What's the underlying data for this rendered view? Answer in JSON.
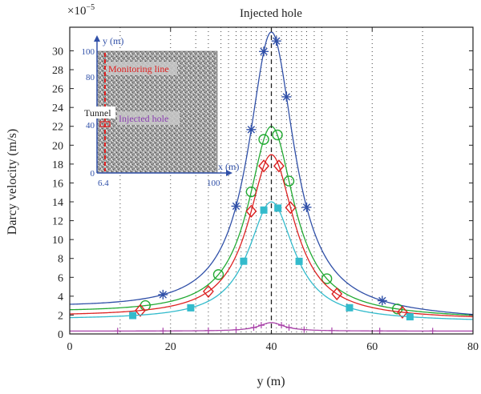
{
  "chart_data": {
    "type": "line",
    "title": "Injected hole",
    "xlabel": "y (m)",
    "ylabel": "Darcy velocity (m/s)",
    "y_multiplier": "×10",
    "y_multiplier_exp": "−5",
    "xlim": [
      0,
      80
    ],
    "ylim": [
      0,
      32.5
    ],
    "x_ticks": [
      0,
      20,
      40,
      60,
      80
    ],
    "y_ticks": [
      0,
      2,
      4,
      6,
      8,
      10,
      12,
      14,
      16,
      18,
      20,
      22,
      24,
      26,
      28,
      30
    ],
    "injected_hole_y": 40,
    "series": [
      {
        "marker": "star",
        "color": "#3050a8",
        "peak": 32,
        "base_left": 2.6,
        "base_right": 1.5,
        "width": 5.5,
        "markers_x": [
          18.5,
          33,
          36,
          38.5,
          41,
          43,
          47,
          62
        ]
      },
      {
        "marker": "circle",
        "color": "#22aa33",
        "peak": 22,
        "base_left": 2.2,
        "base_right": 1.6,
        "width": 5.5,
        "markers_x": [
          15,
          29.5,
          36,
          38.5,
          41.2,
          43.5,
          51,
          65
        ]
      },
      {
        "marker": "diamond",
        "color": "#dd2222",
        "peak": 19,
        "base_left": 1.8,
        "base_right": 1.5,
        "width": 5.5,
        "markers_x": [
          14,
          27.5,
          36,
          38.5,
          41.5,
          43.8,
          53,
          66
        ]
      },
      {
        "marker": "square",
        "color": "#33bbcc",
        "peak": 14,
        "base_left": 1.5,
        "base_right": 1.3,
        "width": 5.5,
        "markers_x": [
          12.5,
          24,
          34.5,
          38.5,
          41.3,
          45.5,
          55.5,
          67.5
        ]
      },
      {
        "marker": "plus",
        "color": "#aa44aa",
        "peak": 1.2,
        "base_left": 0.3,
        "base_right": 0.3,
        "width": 3,
        "markers_x": [
          9.5,
          18.5,
          27.5,
          33,
          36.5,
          38,
          42,
          43.5,
          46.5,
          52,
          61.5,
          72
        ]
      }
    ],
    "inset": {
      "ylabel": "y (m)",
      "xlabel": "x (m)",
      "y_ticks": [
        "100",
        "80",
        "40",
        "0"
      ],
      "x_ticks": [
        "6.4",
        "100"
      ],
      "monitoring_line_label": "Monitoring line",
      "tunnel_label": "Tunnel",
      "injected_hole_label": "Injected hole"
    }
  }
}
